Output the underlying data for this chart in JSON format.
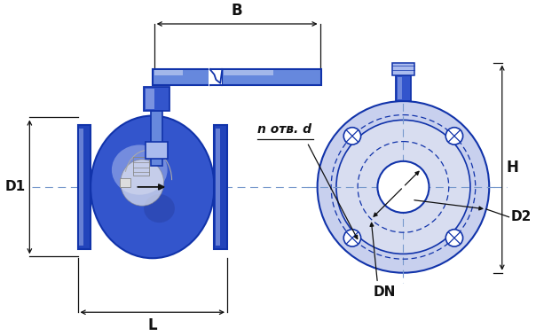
{
  "bg_color": "#ffffff",
  "blue_dark": "#1133aa",
  "blue_mid": "#3355cc",
  "blue_light": "#6688dd",
  "blue_very_light": "#aabbee",
  "blue_flange": "#2244bb",
  "blue_pale": "#c8d0ee",
  "blue_pale2": "#d8ddf0",
  "line_color": "#111111",
  "dim_color": "#111111",
  "center_color": "#7799cc",
  "label_B": "B",
  "label_D1": "D1",
  "label_D2": "D2",
  "label_DN": "DN",
  "label_H": "H",
  "label_L": "L",
  "label_n": "n отв. d",
  "fig_w": 6.04,
  "fig_h": 3.79,
  "dpi": 100
}
